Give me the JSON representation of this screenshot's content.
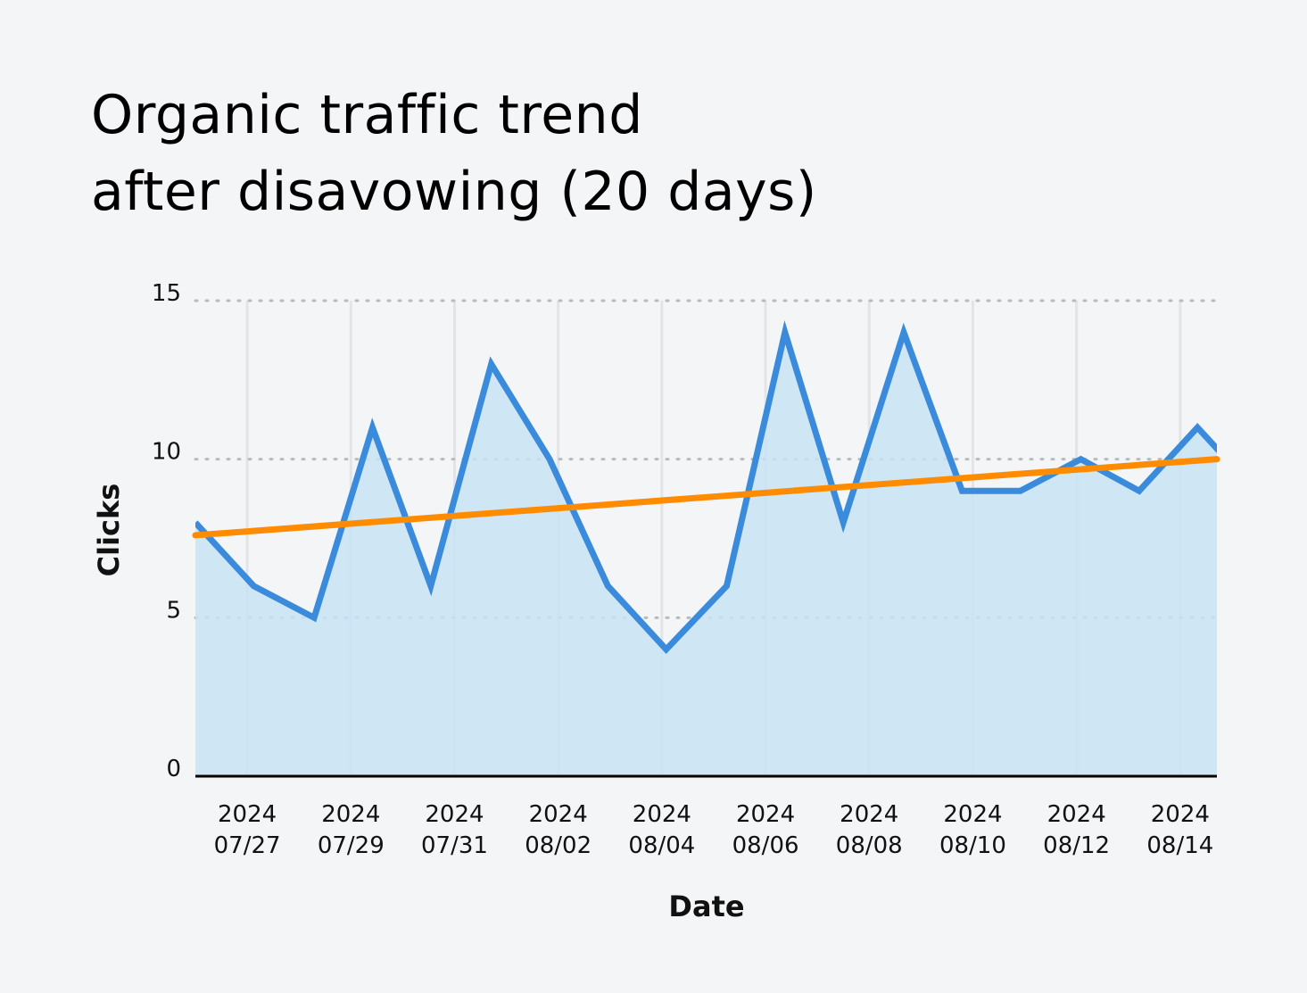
{
  "chart_data": {
    "type": "area",
    "title": [
      "Organic traffic trend",
      "after disavowing (20 days)"
    ],
    "xlabel": "Date",
    "ylabel": "Clicks",
    "xlim": [
      "2024-07-26T00:00",
      "2024-08-14T17:00"
    ],
    "ylim": [
      0,
      15
    ],
    "yticks": [
      0,
      5,
      10,
      15
    ],
    "xticks": [
      {
        "date": "2024-07-27",
        "label": [
          "2024",
          "07/27"
        ]
      },
      {
        "date": "2024-07-29",
        "label": [
          "2024",
          "07/29"
        ]
      },
      {
        "date": "2024-07-31",
        "label": [
          "2024",
          "07/31"
        ]
      },
      {
        "date": "2024-08-02",
        "label": [
          "2024",
          "08/02"
        ]
      },
      {
        "date": "2024-08-04",
        "label": [
          "2024",
          "08/04"
        ]
      },
      {
        "date": "2024-08-06",
        "label": [
          "2024",
          "08/06"
        ]
      },
      {
        "date": "2024-08-08",
        "label": [
          "2024",
          "08/08"
        ]
      },
      {
        "date": "2024-08-10",
        "label": [
          "2024",
          "08/10"
        ]
      },
      {
        "date": "2024-08-12",
        "label": [
          "2024",
          "08/12"
        ]
      },
      {
        "date": "2024-08-14",
        "label": [
          "2024",
          "08/14"
        ]
      }
    ],
    "grid": {
      "x": true,
      "y": "dotted"
    },
    "series": [
      {
        "kind": "area-line",
        "color": "#3a8bdb",
        "fill": "#c8e3f5",
        "x": [
          "2024-07-26T00:00",
          "2024-07-27T03:00",
          "2024-07-28T07:00",
          "2024-07-29T10:00",
          "2024-07-30T13:00",
          "2024-07-31T17:00",
          "2024-08-01T20:00",
          "2024-08-02T23:00",
          "2024-08-04T02:00",
          "2024-08-05T06:00",
          "2024-08-06T09:00",
          "2024-08-07T12:00",
          "2024-08-08T16:00",
          "2024-08-09T19:00",
          "2024-08-10T22:00",
          "2024-08-12T02:00",
          "2024-08-13T05:00",
          "2024-08-14T08:00",
          "2024-08-15T11:00"
        ],
        "y": [
          8,
          6,
          5,
          11,
          6,
          13,
          10,
          6,
          4,
          6,
          14,
          8,
          14,
          9,
          9,
          10,
          9,
          11,
          9
        ]
      },
      {
        "kind": "trend-line",
        "color": "#ff8c00",
        "x": [
          "2024-07-26T00:00",
          "2024-08-14T17:00"
        ],
        "y": [
          7.6,
          10.0
        ]
      }
    ]
  }
}
